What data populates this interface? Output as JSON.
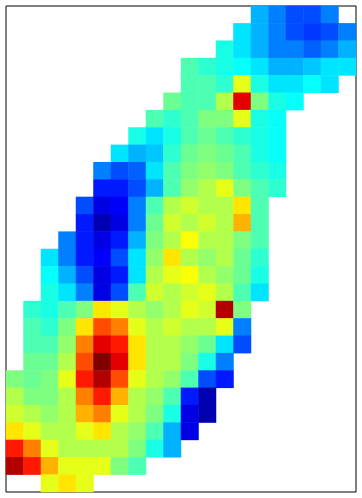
{
  "chart_data": {
    "type": "heatmap",
    "color": "jet",
    "tick_labels": false,
    "grid": false,
    "color_range": [
      0,
      10
    ],
    "cells": [
      [
        null,
        null,
        null,
        null,
        null,
        null,
        null,
        null,
        null,
        null,
        null,
        null,
        null,
        null,
        3,
        2.5,
        2,
        2,
        2.5,
        null
      ],
      [
        null,
        null,
        null,
        null,
        null,
        null,
        null,
        null,
        null,
        null,
        null,
        null,
        null,
        3.5,
        3,
        2.5,
        2,
        1.8,
        2,
        2.5
      ],
      [
        null,
        null,
        null,
        null,
        null,
        null,
        null,
        null,
        null,
        null,
        null,
        null,
        4,
        3.5,
        3,
        2.5,
        2.5,
        2.2,
        2.5,
        3
      ],
      [
        null,
        null,
        null,
        null,
        null,
        null,
        null,
        null,
        null,
        null,
        4.5,
        4.2,
        4,
        3.8,
        3.5,
        3,
        3,
        3.2,
        3.5,
        3.5
      ],
      [
        null,
        null,
        null,
        null,
        null,
        null,
        null,
        null,
        null,
        null,
        4.5,
        4.5,
        4.2,
        6,
        4,
        3.5,
        3.5,
        3.8,
        3.5,
        null
      ],
      [
        null,
        null,
        null,
        null,
        null,
        null,
        null,
        null,
        null,
        4.8,
        4.5,
        4.5,
        5.5,
        9,
        5,
        4,
        3.8,
        null,
        null,
        null
      ],
      [
        null,
        null,
        null,
        null,
        null,
        null,
        null,
        null,
        4.5,
        4.2,
        4.5,
        5,
        5,
        6,
        4,
        3.8,
        null,
        null,
        null,
        null
      ],
      [
        null,
        null,
        null,
        null,
        null,
        null,
        null,
        4,
        3.5,
        4,
        4.5,
        4.8,
        4.5,
        4.2,
        4,
        3.8,
        null,
        null,
        null,
        null
      ],
      [
        null,
        null,
        null,
        null,
        null,
        null,
        3.5,
        3,
        3.2,
        4.2,
        4.8,
        5,
        4.8,
        4.5,
        4,
        3.8,
        null,
        null,
        null,
        null
      ],
      [
        null,
        null,
        null,
        null,
        null,
        2.5,
        2,
        2.2,
        3.5,
        4.5,
        5,
        5.2,
        5,
        4.5,
        4.2,
        4,
        null,
        null,
        null,
        null
      ],
      [
        null,
        null,
        null,
        null,
        null,
        1.5,
        1.5,
        2,
        3,
        4.5,
        5.2,
        5.5,
        6,
        5,
        4.5,
        4.2,
        null,
        null,
        null,
        null
      ],
      [
        null,
        null,
        null,
        null,
        2,
        1,
        1.2,
        2.5,
        4.5,
        5.5,
        5.8,
        5.5,
        5.5,
        6.5,
        4.5,
        null,
        null,
        null,
        null,
        null
      ],
      [
        null,
        null,
        null,
        null,
        1.5,
        0.5,
        1,
        2.5,
        4.8,
        5.8,
        5.5,
        5.8,
        5.5,
        7,
        4.5,
        null,
        null,
        null,
        null,
        null
      ],
      [
        null,
        null,
        null,
        2.5,
        1.5,
        1,
        1.5,
        3,
        5,
        5.5,
        6.2,
        5.5,
        5.5,
        5,
        4.5,
        null,
        null,
        null,
        null,
        null
      ],
      [
        null,
        null,
        3.5,
        2.5,
        1.5,
        1.2,
        2,
        3.5,
        5.2,
        6.5,
        5.5,
        5.2,
        5.5,
        4.8,
        4.2,
        null,
        null,
        null,
        null,
        null
      ],
      [
        null,
        null,
        3.8,
        3,
        2,
        1,
        1.5,
        3.5,
        5.5,
        6,
        6.2,
        5.5,
        5.2,
        4.8,
        4,
        null,
        null,
        null,
        null,
        null
      ],
      [
        null,
        null,
        4,
        3.5,
        2.5,
        1,
        2,
        4.5,
        5.8,
        5.5,
        5.8,
        6,
        5.5,
        4.5,
        3.5,
        null,
        null,
        null,
        null,
        null
      ],
      [
        null,
        4.2,
        4,
        4.5,
        5,
        6.5,
        6,
        5.5,
        5.2,
        5.5,
        6,
        5.8,
        9.5,
        5,
        null,
        null,
        null,
        null,
        null,
        null
      ],
      [
        null,
        4.5,
        4.2,
        5,
        6.5,
        8,
        7.5,
        6,
        5.5,
        5.8,
        5.5,
        5.5,
        6,
        2.5,
        null,
        null,
        null,
        null,
        null,
        null
      ],
      [
        null,
        4.5,
        4.5,
        5.2,
        7.5,
        9,
        8.5,
        6.5,
        5.5,
        5.5,
        5.2,
        4.8,
        3.5,
        2,
        null,
        null,
        null,
        null,
        null,
        null
      ],
      [
        null,
        4.8,
        4.8,
        5.5,
        8,
        10,
        9,
        6.5,
        5.5,
        5.5,
        5,
        4,
        2.5,
        null,
        null,
        null,
        null,
        null,
        null,
        null
      ],
      [
        5,
        4.8,
        5,
        6,
        8.5,
        9.5,
        8,
        6,
        5.5,
        5.2,
        4.5,
        2,
        1.5,
        null,
        null,
        null,
        null,
        null,
        null,
        null
      ],
      [
        5.5,
        5,
        5,
        5.5,
        7.5,
        8.5,
        7,
        5.5,
        5.2,
        4.5,
        1.5,
        0.5,
        null,
        null,
        null,
        null,
        null,
        null,
        null,
        null
      ],
      [
        5.8,
        5.5,
        5.2,
        5.5,
        7,
        7.5,
        6,
        5.5,
        5,
        4,
        1,
        0.5,
        null,
        null,
        null,
        null,
        null,
        null,
        null,
        null
      ],
      [
        6.5,
        6,
        5.5,
        5.5,
        6,
        6.5,
        5.5,
        5.2,
        4.5,
        3,
        1,
        null,
        null,
        null,
        null,
        null,
        null,
        null,
        null,
        null
      ],
      [
        8.5,
        7.5,
        6,
        5.5,
        5.5,
        5.5,
        5.5,
        5,
        4,
        3,
        null,
        null,
        null,
        null,
        null,
        null,
        null,
        null,
        null,
        null
      ],
      [
        9.5,
        8.5,
        7,
        6,
        6,
        6,
        5,
        4.5,
        null,
        null,
        null,
        null,
        null,
        null,
        null,
        null,
        null,
        null,
        null,
        null
      ],
      [
        null,
        null,
        6,
        6.5,
        6,
        null,
        null,
        null,
        null,
        null,
        null,
        null,
        null,
        null,
        null,
        null,
        null,
        null,
        null,
        null
      ]
    ]
  }
}
